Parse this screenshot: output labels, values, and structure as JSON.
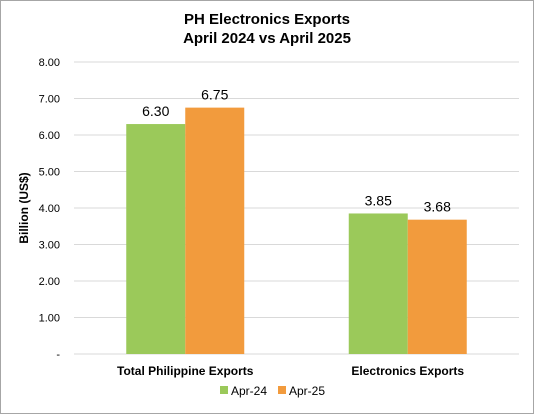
{
  "chart_data": {
    "type": "bar",
    "title_lines": [
      "PH Electronics Exports",
      "April 2024 vs April 2025"
    ],
    "categories": [
      "Total Philippine Exports",
      "Electronics Exports"
    ],
    "series": [
      {
        "name": "Apr-24",
        "values": [
          6.3,
          3.85
        ],
        "labels": [
          "6.30",
          "3.85"
        ],
        "color": "#9bc95a"
      },
      {
        "name": "Apr-25",
        "values": [
          6.75,
          3.68
        ],
        "labels": [
          "6.75",
          "3.68"
        ],
        "color": "#f29b3d"
      }
    ],
    "ylabel": "Billion (US$)",
    "ylim": [
      0,
      8
    ],
    "yticks": [
      0,
      1,
      2,
      3,
      4,
      5,
      6,
      7,
      8
    ],
    "ytick_labels": [
      "-",
      "1.00",
      "2.00",
      "3.00",
      "4.00",
      "5.00",
      "6.00",
      "7.00",
      "8.00"
    ],
    "grid": true,
    "legend_position": "bottom"
  }
}
